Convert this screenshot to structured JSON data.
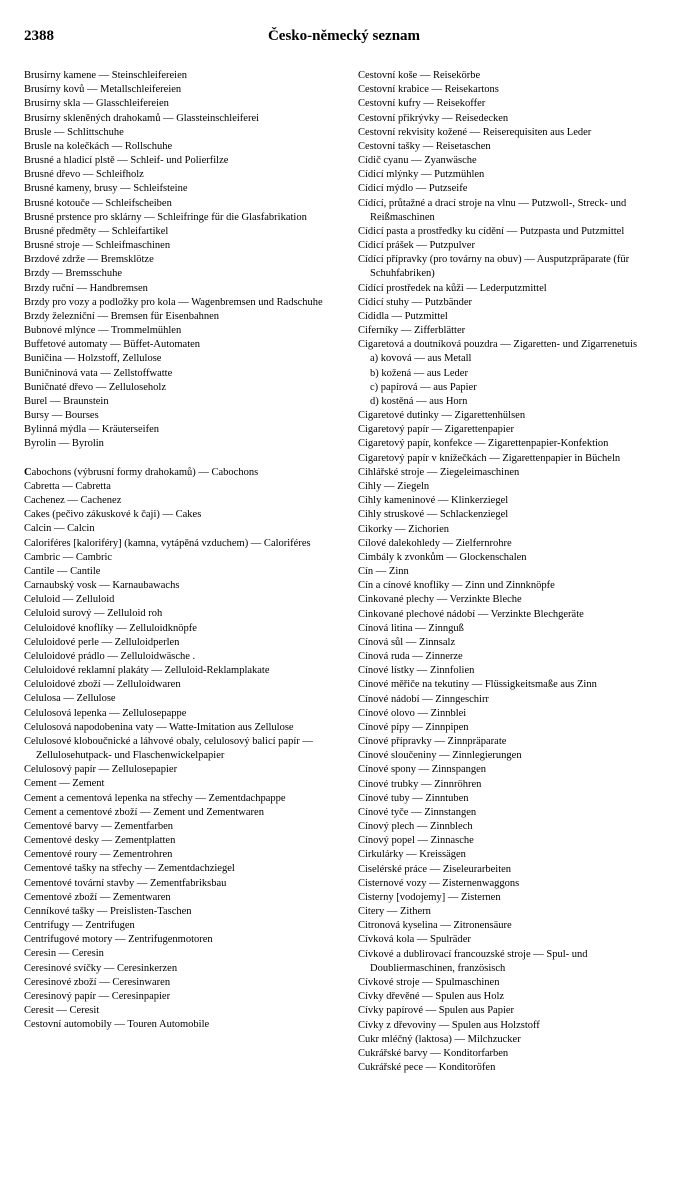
{
  "header": {
    "page_number": "2388",
    "title": "Česko-německý seznam"
  },
  "left_column": [
    {
      "cz": "Brusírny kamene",
      "de": "Steinschleifereien"
    },
    {
      "cz": "Brusírny kovů",
      "de": "Metallschleifereien"
    },
    {
      "cz": "Brusírny skla",
      "de": "Glasschleifereien"
    },
    {
      "cz": "Brusírny skleněných drahokamů",
      "de": "Glassteinschleiferei"
    },
    {
      "cz": "Brusle",
      "de": "Schlittschuhe"
    },
    {
      "cz": "Brusle na kolečkách",
      "de": "Rollschuhe"
    },
    {
      "cz": "Brusné a hladicí plstě",
      "de": "Schleif- und Polierfilze"
    },
    {
      "cz": "Brusné dřevo",
      "de": "Schleifholz"
    },
    {
      "cz": "Brusné kameny, brusy",
      "de": "Schleifsteine"
    },
    {
      "cz": "Brusné kotouče",
      "de": "Schleifscheiben"
    },
    {
      "cz": "Brusné prstence pro sklárny",
      "de": "Schleifringe für die Glasfabrikation"
    },
    {
      "cz": "Brusné předměty",
      "de": "Schleifartikel"
    },
    {
      "cz": "Brusné stroje",
      "de": "Schleifmaschinen"
    },
    {
      "cz": "Brzdové zdrže",
      "de": "Bremsklötze"
    },
    {
      "cz": "Brzdy",
      "de": "Bremsschuhe"
    },
    {
      "cz": "Brzdy ruční",
      "de": "Handbremsen"
    },
    {
      "cz": "Brzdy pro vozy a podložky pro kola",
      "de": "Wagenbremsen und Radschuhe"
    },
    {
      "cz": "Brzdy železniční",
      "de": "Bremsen für Eisenbahnen"
    },
    {
      "cz": "Bubnové mlýnce",
      "de": "Trommelmühlen"
    },
    {
      "cz": "Buffetové automaty",
      "de": "Büffet-Automaten"
    },
    {
      "cz": "Buničina",
      "de": "Holzstoff, Zellulose"
    },
    {
      "cz": "Buničninová vata",
      "de": "Zellstoffwatte"
    },
    {
      "cz": "Buničnaté dřevo",
      "de": "Zelluloseholz"
    },
    {
      "cz": "Burel",
      "de": "Braunstein"
    },
    {
      "cz": "Bursy",
      "de": "Bourses"
    },
    {
      "cz": "Bylinná mýdla",
      "de": "Kräuterseifen"
    },
    {
      "cz": "Byrolin",
      "de": "Byrolin"
    },
    {
      "gap": true
    },
    {
      "lead": "C",
      "cz": "abochons (výbrusní formy drahokamů)",
      "de": "Cabochons"
    },
    {
      "cz": "Cabretta",
      "de": "Cabretta"
    },
    {
      "cz": "Cachenez",
      "de": "Cachenez"
    },
    {
      "cz": "Cakes (pečivo zákuskové k čaji)",
      "de": "Cakes"
    },
    {
      "cz": "Calcin",
      "de": "Calcin"
    },
    {
      "cz": "Caloriféres [kaloriféry] (kamna, vytápěná vzduchem)",
      "de": "Caloriféres"
    },
    {
      "cz": "Cambric",
      "de": "Cambric"
    },
    {
      "cz": "Cantile",
      "de": "Cantile"
    },
    {
      "cz": "Carnaubský vosk",
      "de": "Karnaubawachs"
    },
    {
      "cz": "Celuloid",
      "de": "Zelluloid"
    },
    {
      "cz": "Celuloid surový",
      "de": "Zelluloid roh"
    },
    {
      "cz": "Celuloidové knoflíky",
      "de": "Zelluloidknöpfe"
    },
    {
      "cz": "Celuloidové perle",
      "de": "Zelluloidperlen"
    },
    {
      "cz": "Celuloidové prádlo",
      "de": "Zelluloidwäsche ."
    },
    {
      "cz": "Celuloidové reklamní plakáty",
      "de": "Zelluloid-Reklamplakate"
    },
    {
      "cz": "Celuloidové zboží",
      "de": "Zelluloidwaren"
    },
    {
      "cz": "Celulosa",
      "de": "Zellulose"
    },
    {
      "cz": "Celulosová lepenka",
      "de": "Zellulosepappe"
    },
    {
      "cz": "Celulosová napodobenina vaty",
      "de": "Watte-Imitation aus Zellulose"
    },
    {
      "cz": "Celulosové kloboučnické a láhvové obaly, celulosový balicí papír",
      "de": "Zellulosehutpack- und Flaschenwickelpapier"
    },
    {
      "cz": "Celulosový papír",
      "de": "Zellulosepapier"
    },
    {
      "cz": "Cement",
      "de": "Zement"
    },
    {
      "cz": "Cement a cementová lepenka na střechy",
      "de": "Zementdachpappe"
    },
    {
      "cz": "Cement a cementové zboží",
      "de": "Zement und Zementwaren"
    },
    {
      "cz": "Cementové barvy",
      "de": "Zementfarben"
    },
    {
      "cz": "Cementové desky",
      "de": "Zementplatten"
    },
    {
      "cz": "Cementové roury",
      "de": "Zementrohren"
    },
    {
      "cz": "Cementové tašky na střechy",
      "de": "Zementdachziegel"
    },
    {
      "cz": "Cementové tovární stavby",
      "de": "Zementfabriksbau"
    },
    {
      "cz": "Cementové zboží",
      "de": "Zementwaren"
    },
    {
      "cz": "Cenníkové tašky",
      "de": "Preislisten-Taschen"
    },
    {
      "cz": "Centrifugy",
      "de": "Zentrifugen"
    },
    {
      "cz": "Centrifugové motory",
      "de": "Zentrifugenmotoren"
    },
    {
      "cz": "Ceresin",
      "de": "Ceresin"
    },
    {
      "cz": "Ceresinové svíčky",
      "de": "Ceresinkerzen"
    },
    {
      "cz": "Ceresinové zboží",
      "de": "Ceresinwaren"
    },
    {
      "cz": "Ceresinový papír",
      "de": "Ceresinpapier"
    },
    {
      "cz": "Ceresit",
      "de": "Ceresit"
    },
    {
      "cz": "Cestovní automobily",
      "de": "Touren Automobile"
    }
  ],
  "right_column": [
    {
      "cz": "Cestovní koše",
      "de": "Reisekörbe"
    },
    {
      "cz": "Cestovní krabice",
      "de": "Reisekartons"
    },
    {
      "cz": "Cestovní kufry",
      "de": "Reisekoffer"
    },
    {
      "cz": "Cestovní přikrývky",
      "de": "Reisedecken"
    },
    {
      "cz": "Cestovní rekvisity kožené",
      "de": "Reiserequisiten aus Leder"
    },
    {
      "cz": "Cestovní tašky",
      "de": "Reisetaschen"
    },
    {
      "cz": "Cídič cyanu",
      "de": "Zyanwäsche"
    },
    {
      "cz": "Cídicí mlýnky",
      "de": "Putzmühlen"
    },
    {
      "cz": "Cídicí mýdlo",
      "de": "Putzseife"
    },
    {
      "cz": "Cídící, průtažné a drací stroje na vlnu",
      "de": "Putzwoll-, Streck- und Reißmaschinen"
    },
    {
      "cz": "Cídicí pasta a prostředky ku cídění",
      "de": "Putzpasta und Putzmittel"
    },
    {
      "cz": "Cídicí prášek",
      "de": "Putzpulver"
    },
    {
      "cz": "Cídící přípravky (pro továrny na obuv)",
      "de": "Ausputzpräparate (für Schuhfabriken)"
    },
    {
      "cz": "Cídící prostředek na kůži",
      "de": "Lederputzmittel"
    },
    {
      "cz": "Cídicí stuhy",
      "de": "Putzbänder"
    },
    {
      "cz": "Cídidla",
      "de": "Putzmittel"
    },
    {
      "cz": "Ciferníky",
      "de": "Zifferblätter"
    },
    {
      "cz": "Cigaretová a doutníková pouzdra",
      "de": "Zigaretten- und Zigarrenetuis"
    },
    {
      "sub": true,
      "cz": "a) kovová",
      "de": "aus Metall"
    },
    {
      "sub": true,
      "cz": "b) kožená",
      "de": "aus Leder"
    },
    {
      "sub": true,
      "cz": "c) papírová",
      "de": "aus Papier"
    },
    {
      "sub": true,
      "cz": "d) kostěná",
      "de": "aus Horn"
    },
    {
      "cz": "Cigaretové dutinky",
      "de": "Zigarettenhülsen"
    },
    {
      "cz": "Cigaretový papír",
      "de": "Zigarettenpapier"
    },
    {
      "cz": "Cigaretový papír, konfekce",
      "de": "Zigarettenpapier-Konfektion"
    },
    {
      "cz": "Cigaretový papír v knížečkách",
      "de": "Zigarettenpapier in Bücheln"
    },
    {
      "cz": "Cihlářské stroje",
      "de": "Ziegeleimaschinen"
    },
    {
      "cz": "Cihly",
      "de": "Ziegeln"
    },
    {
      "cz": "Cihly kameninové",
      "de": "Klinkerziegel"
    },
    {
      "cz": "Cihly struskové",
      "de": "Schlackenziegel"
    },
    {
      "cz": "Cikorky",
      "de": "Zichorien"
    },
    {
      "cz": "Cílové dalekohledy",
      "de": "Zielfernrohre"
    },
    {
      "cz": "Cimbály k zvonkům",
      "de": "Glockenschalen"
    },
    {
      "cz": "Cín",
      "de": "Zinn"
    },
    {
      "cz": "Cín a cínové knoflíky",
      "de": "Zinn und Zinnknöpfe"
    },
    {
      "cz": "Cinkované plechy",
      "de": "Verzinkte Bleche"
    },
    {
      "cz": "Cinkované plechové nádobí",
      "de": "Verzinkte Blechgeräte"
    },
    {
      "cz": "Cínová litina",
      "de": "Zinnguß"
    },
    {
      "cz": "Cínová sůl",
      "de": "Zinnsalz"
    },
    {
      "cz": "Cínová ruda",
      "de": "Zinnerze"
    },
    {
      "cz": "Cínové lístky",
      "de": "Zinnfolien"
    },
    {
      "cz": "Cínové měřiče na tekutiny",
      "de": "Flüssigkeitsmaße aus Zinn"
    },
    {
      "cz": "Cínové nádobí",
      "de": "Zinngeschirr"
    },
    {
      "cz": "Cínové olovo",
      "de": "Zinnblei"
    },
    {
      "cz": "Cínové pípy",
      "de": "Zinnpipen"
    },
    {
      "cz": "Cínové přípravky",
      "de": "Zinnpräparate"
    },
    {
      "cz": "Cínové sloučeniny",
      "de": "Zinnlegierungen"
    },
    {
      "cz": "Cínové spony",
      "de": "Zinnspangen"
    },
    {
      "cz": "Cínové trubky",
      "de": "Zinnröhren"
    },
    {
      "cz": "Cínové tuby",
      "de": "Zinntuben"
    },
    {
      "cz": "Cínové tyče",
      "de": "Zinnstangen"
    },
    {
      "cz": "Cínový plech",
      "de": "Zinnblech"
    },
    {
      "cz": "Cínový popel",
      "de": "Zinnasche"
    },
    {
      "cz": "Cirkulárky",
      "de": "Kreissägen"
    },
    {
      "cz": "Ciselérské práce",
      "de": "Ziseleurarbeiten"
    },
    {
      "cz": "Cisternové vozy",
      "de": "Zisternenwaggons"
    },
    {
      "cz": "Cisterny [vodojemy]",
      "de": "Zisternen"
    },
    {
      "cz": "Citery",
      "de": "Zithern"
    },
    {
      "cz": "Citronová kyselina",
      "de": "Zitronensäure"
    },
    {
      "cz": "Cívková kola",
      "de": "Spulräder"
    },
    {
      "cz": "Cívkové a dublirovací francouzské stroje",
      "de": "Spul- und Doubliermaschinen, französisch"
    },
    {
      "cz": "Cívkové stroje",
      "de": "Spulmaschinen"
    },
    {
      "cz": "Cívky dřevěné",
      "de": "Spulen aus Holz"
    },
    {
      "cz": "Cívky papírové",
      "de": "Spulen aus Papier"
    },
    {
      "cz": "Cívky z dřevoviny",
      "de": "Spulen aus Holzstoff"
    },
    {
      "cz": "Cukr mléčný (laktosa)",
      "de": "Milchzucker"
    },
    {
      "cz": "Cukrářské barvy",
      "de": "Konditorfarben"
    },
    {
      "cz": "Cukrářské pece",
      "de": "Konditoröfen"
    }
  ]
}
